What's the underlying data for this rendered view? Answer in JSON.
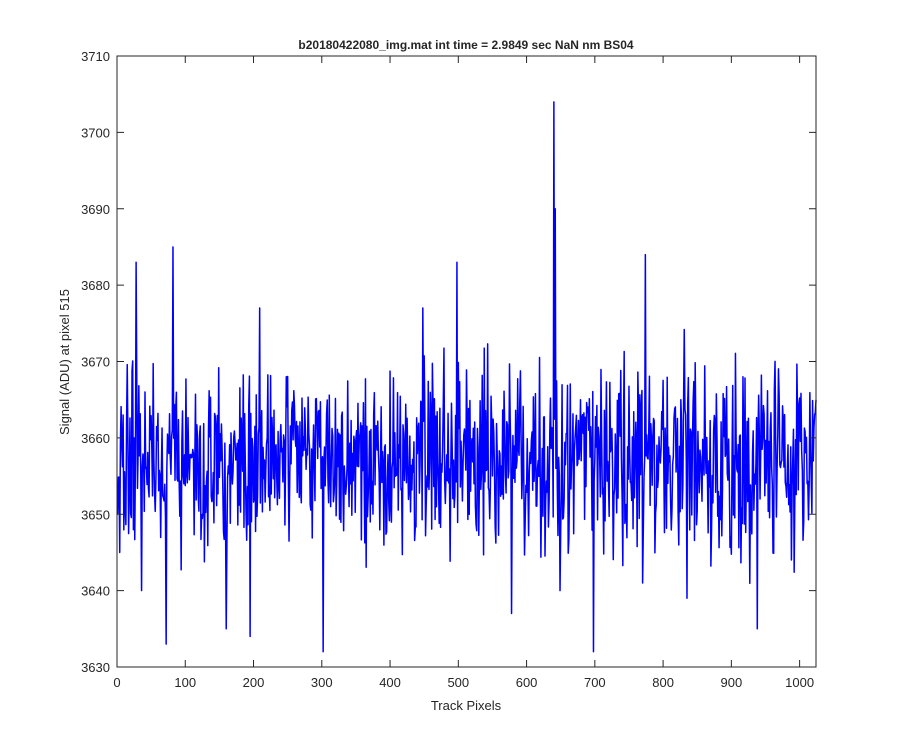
{
  "figure": {
    "background": "#ffffff"
  },
  "chart_data": {
    "type": "line",
    "title": "b20180422080_img.mat int time = 2.9849 sec  NaN nm BS04",
    "xlabel": "Track Pixels",
    "ylabel": "Signal (ADU) at pixel 515",
    "xlim": [
      0,
      1024
    ],
    "ylim": [
      3630,
      3710
    ],
    "xticks": [
      0,
      100,
      200,
      300,
      400,
      500,
      600,
      700,
      800,
      900,
      1000
    ],
    "yticks": [
      3630,
      3640,
      3650,
      3660,
      3670,
      3680,
      3690,
      3700,
      3710
    ],
    "grid": false,
    "legend": "none",
    "line_color": "#0000ff",
    "series": [
      {
        "x_start": 1,
        "x_step": 1,
        "n_points": 1024,
        "mean": 3657,
        "noise_sd": 6,
        "notable_points": [
          {
            "x": 1,
            "y": 3650
          },
          {
            "x": 4,
            "y": 3645
          },
          {
            "x": 28,
            "y": 3683
          },
          {
            "x": 36,
            "y": 3640
          },
          {
            "x": 72,
            "y": 3633
          },
          {
            "x": 82,
            "y": 3685
          },
          {
            "x": 160,
            "y": 3635
          },
          {
            "x": 195,
            "y": 3634
          },
          {
            "x": 302,
            "y": 3632
          },
          {
            "x": 448,
            "y": 3677
          },
          {
            "x": 498,
            "y": 3683
          },
          {
            "x": 578,
            "y": 3637
          },
          {
            "x": 640,
            "y": 3704
          },
          {
            "x": 642,
            "y": 3690
          },
          {
            "x": 649,
            "y": 3640
          },
          {
            "x": 698,
            "y": 3632
          },
          {
            "x": 770,
            "y": 3641
          },
          {
            "x": 774,
            "y": 3684
          },
          {
            "x": 835,
            "y": 3639
          },
          {
            "x": 938,
            "y": 3635
          },
          {
            "x": 1022,
            "y": 3663
          }
        ]
      }
    ]
  }
}
